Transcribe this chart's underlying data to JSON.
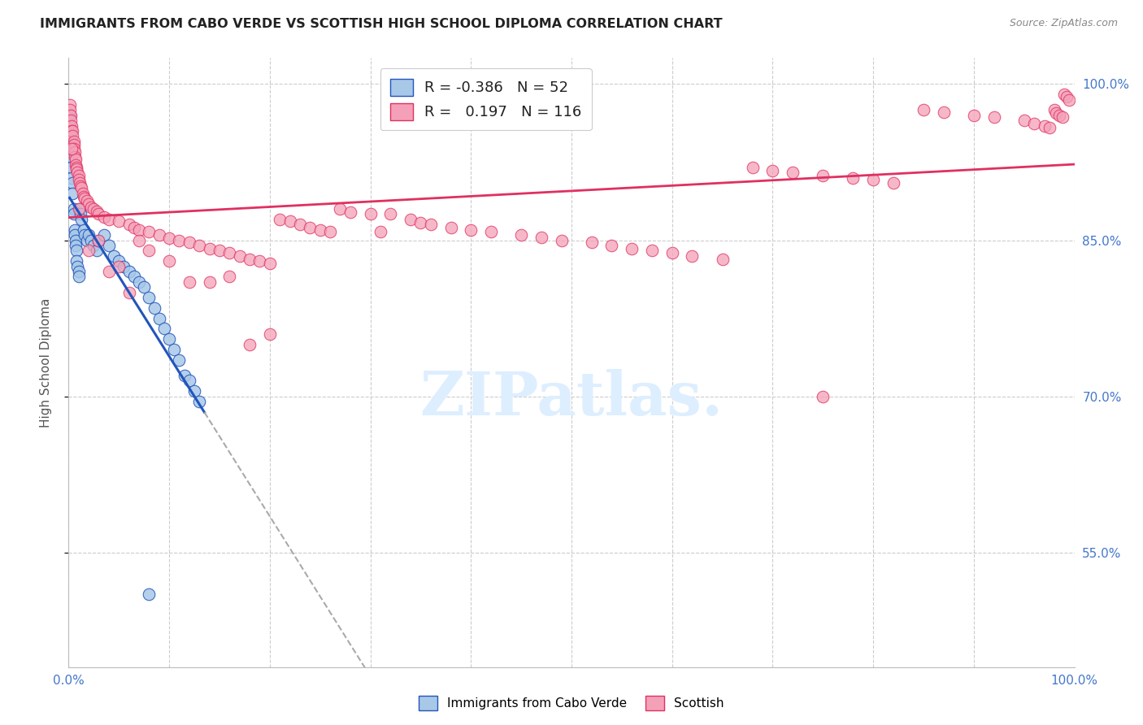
{
  "title": "IMMIGRANTS FROM CABO VERDE VS SCOTTISH HIGH SCHOOL DIPLOMA CORRELATION CHART",
  "source": "Source: ZipAtlas.com",
  "ylabel": "High School Diploma",
  "xlim": [
    0.0,
    1.0
  ],
  "ylim": [
    0.44,
    1.025
  ],
  "y_ticks": [
    0.55,
    0.7,
    0.85,
    1.0
  ],
  "y_tick_labels": [
    "55.0%",
    "70.0%",
    "85.0%",
    "100.0%"
  ],
  "cabo_verde_R": -0.386,
  "cabo_verde_N": 52,
  "scottish_R": 0.197,
  "scottish_N": 116,
  "cabo_verde_color": "#a8c8e8",
  "scottish_color": "#f4a0b8",
  "cabo_verde_line_color": "#2255bb",
  "scottish_line_color": "#e03060",
  "watermark_color": "#ddeeff",
  "background_color": "#ffffff",
  "grid_color": "#cccccc",
  "cabo_verde_x": [
    0.001,
    0.001,
    0.002,
    0.002,
    0.003,
    0.003,
    0.003,
    0.004,
    0.004,
    0.005,
    0.005,
    0.006,
    0.006,
    0.007,
    0.007,
    0.008,
    0.008,
    0.009,
    0.01,
    0.01,
    0.011,
    0.012,
    0.013,
    0.015,
    0.016,
    0.018,
    0.02,
    0.022,
    0.025,
    0.028,
    0.03,
    0.035,
    0.04,
    0.045,
    0.05,
    0.055,
    0.06,
    0.065,
    0.07,
    0.075,
    0.08,
    0.085,
    0.09,
    0.095,
    0.1,
    0.105,
    0.11,
    0.115,
    0.12,
    0.125,
    0.13,
    0.08
  ],
  "cabo_verde_y": [
    0.97,
    0.96,
    0.955,
    0.945,
    0.93,
    0.92,
    0.91,
    0.905,
    0.895,
    0.88,
    0.875,
    0.86,
    0.855,
    0.85,
    0.845,
    0.84,
    0.83,
    0.825,
    0.82,
    0.815,
    0.88,
    0.875,
    0.87,
    0.86,
    0.855,
    0.85,
    0.855,
    0.85,
    0.845,
    0.84,
    0.85,
    0.855,
    0.845,
    0.835,
    0.83,
    0.825,
    0.82,
    0.815,
    0.81,
    0.805,
    0.795,
    0.785,
    0.775,
    0.765,
    0.755,
    0.745,
    0.735,
    0.72,
    0.715,
    0.705,
    0.695,
    0.51
  ],
  "scottish_x": [
    0.001,
    0.001,
    0.002,
    0.002,
    0.003,
    0.003,
    0.004,
    0.004,
    0.005,
    0.005,
    0.005,
    0.006,
    0.006,
    0.007,
    0.007,
    0.008,
    0.008,
    0.009,
    0.01,
    0.01,
    0.011,
    0.012,
    0.013,
    0.014,
    0.015,
    0.016,
    0.018,
    0.02,
    0.022,
    0.025,
    0.028,
    0.03,
    0.035,
    0.04,
    0.05,
    0.06,
    0.065,
    0.07,
    0.08,
    0.09,
    0.1,
    0.11,
    0.12,
    0.13,
    0.14,
    0.15,
    0.16,
    0.17,
    0.18,
    0.19,
    0.2,
    0.21,
    0.22,
    0.23,
    0.24,
    0.25,
    0.26,
    0.27,
    0.28,
    0.3,
    0.31,
    0.32,
    0.34,
    0.35,
    0.36,
    0.38,
    0.4,
    0.42,
    0.45,
    0.47,
    0.49,
    0.52,
    0.54,
    0.56,
    0.58,
    0.6,
    0.62,
    0.65,
    0.68,
    0.7,
    0.72,
    0.75,
    0.78,
    0.8,
    0.82,
    0.85,
    0.87,
    0.9,
    0.92,
    0.95,
    0.96,
    0.97,
    0.975,
    0.98,
    0.982,
    0.985,
    0.988,
    0.99,
    0.992,
    0.995,
    0.003,
    0.01,
    0.02,
    0.03,
    0.04,
    0.05,
    0.06,
    0.07,
    0.08,
    0.1,
    0.12,
    0.14,
    0.16,
    0.18,
    0.2,
    0.75
  ],
  "scottish_y": [
    0.98,
    0.975,
    0.97,
    0.965,
    0.96,
    0.955,
    0.955,
    0.95,
    0.945,
    0.942,
    0.938,
    0.935,
    0.93,
    0.928,
    0.922,
    0.92,
    0.918,
    0.915,
    0.912,
    0.908,
    0.905,
    0.902,
    0.9,
    0.895,
    0.892,
    0.89,
    0.888,
    0.885,
    0.882,
    0.88,
    0.878,
    0.875,
    0.872,
    0.87,
    0.868,
    0.865,
    0.862,
    0.86,
    0.858,
    0.855,
    0.852,
    0.85,
    0.848,
    0.845,
    0.842,
    0.84,
    0.838,
    0.835,
    0.832,
    0.83,
    0.828,
    0.87,
    0.868,
    0.865,
    0.862,
    0.86,
    0.858,
    0.88,
    0.877,
    0.875,
    0.858,
    0.875,
    0.87,
    0.867,
    0.865,
    0.862,
    0.86,
    0.858,
    0.855,
    0.853,
    0.85,
    0.848,
    0.845,
    0.842,
    0.84,
    0.838,
    0.835,
    0.832,
    0.92,
    0.917,
    0.915,
    0.912,
    0.91,
    0.908,
    0.905,
    0.975,
    0.973,
    0.97,
    0.968,
    0.965,
    0.962,
    0.96,
    0.958,
    0.975,
    0.972,
    0.97,
    0.968,
    0.99,
    0.988,
    0.985,
    0.938,
    0.88,
    0.84,
    0.85,
    0.82,
    0.825,
    0.8,
    0.85,
    0.84,
    0.83,
    0.81,
    0.81,
    0.815,
    0.75,
    0.76,
    0.7
  ]
}
